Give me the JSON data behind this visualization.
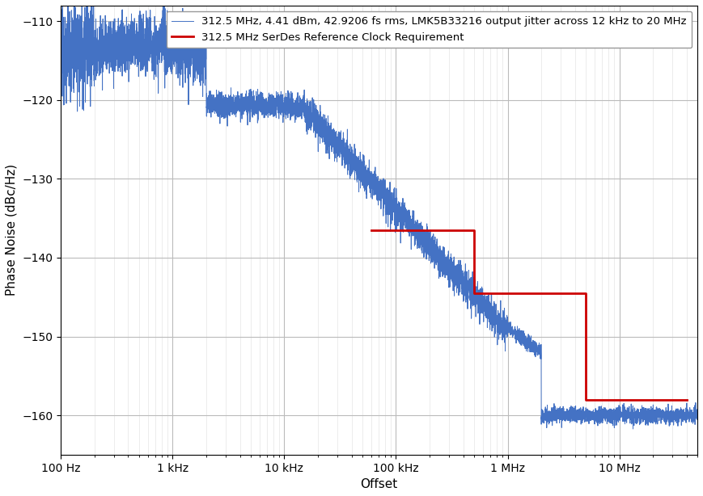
{
  "title": "",
  "xlabel": "Offset",
  "ylabel": "Phase Noise (dBc/Hz)",
  "xlim": [
    100,
    50000000
  ],
  "ylim": [
    -165,
    -108
  ],
  "yticks": [
    -160,
    -150,
    -140,
    -130,
    -120,
    -110
  ],
  "legend_line1": "312.5 MHz, 4.41 dBm, 42.9206 fs rms, LMK5B33216 output jitter across 12 kHz to 20 MHz",
  "legend_line2": "312.5 MHz SerDes Reference Clock Requirement",
  "blue_color": "#4472c4",
  "red_color": "#cc0000",
  "mask_x": [
    60000,
    500000,
    500000,
    5000000,
    5000000,
    40000000
  ],
  "mask_y": [
    -136.5,
    -136.5,
    -144.5,
    -144.5,
    -158.0,
    -158.0
  ],
  "xtick_positions": [
    100,
    1000,
    10000,
    100000,
    1000000,
    10000000
  ],
  "xtick_labels": [
    "100 Hz",
    "1 kHz",
    "10 kHz",
    "100 kHz",
    "1 MHz",
    "10 MHz"
  ]
}
